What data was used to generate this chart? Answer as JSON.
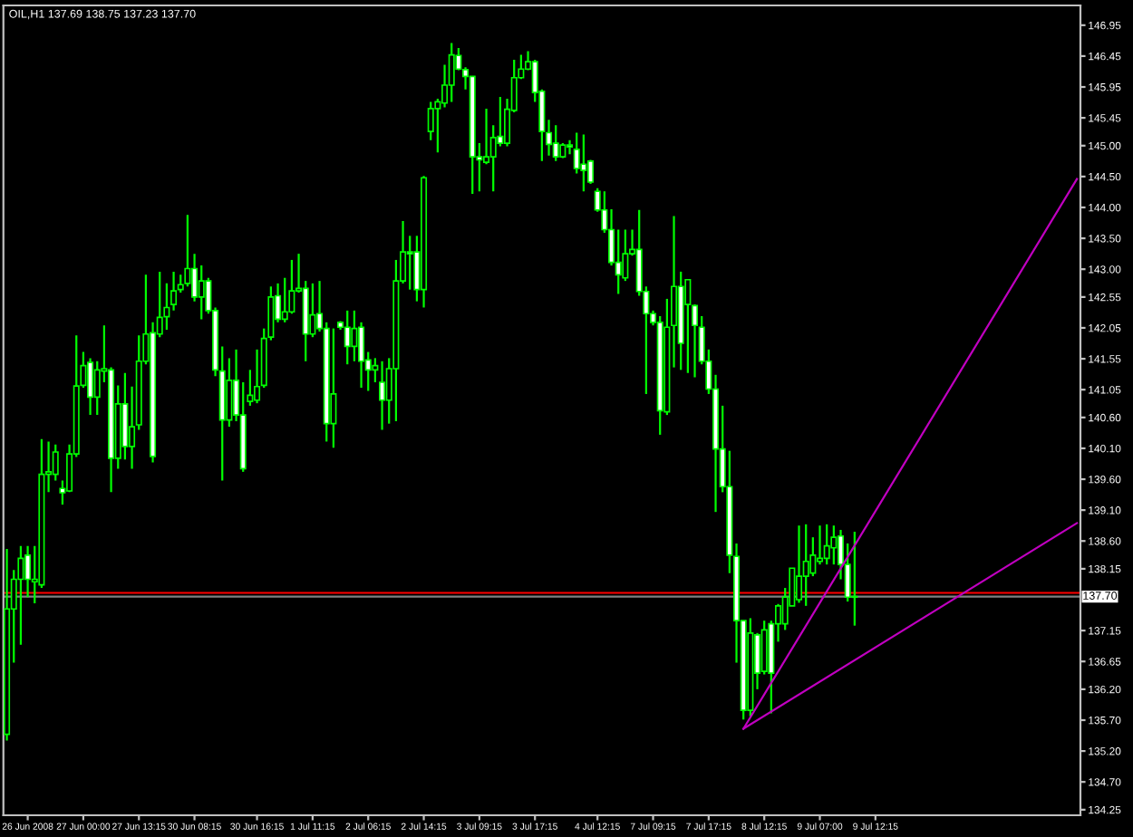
{
  "chart_data": {
    "type": "candlestick",
    "title": "OIL,H1 137.69 138.75 137.23 137.70",
    "color": "#00ff00",
    "categories": [
      null,
      null,
      null,
      "26 Jun 2008",
      null,
      null,
      null,
      null,
      null,
      null,
      null,
      "27 Jun 00:00",
      null,
      null,
      null,
      null,
      null,
      null,
      null,
      "27 Jun 13:15",
      null,
      null,
      null,
      null,
      null,
      null,
      null,
      "30 Jun 08:15",
      null,
      null,
      null,
      null,
      null,
      null,
      null,
      null,
      "30 Jun 16:15",
      null,
      null,
      null,
      null,
      null,
      null,
      null,
      "1 Jul 11:15",
      null,
      null,
      null,
      null,
      null,
      null,
      null,
      "2 Jul 06:15",
      null,
      null,
      null,
      null,
      null,
      null,
      null,
      "2 Jul 14:15",
      null,
      null,
      null,
      null,
      null,
      null,
      null,
      "3 Jul 09:15",
      null,
      null,
      null,
      null,
      null,
      null,
      null,
      "3 Jul 17:15",
      null,
      null,
      null,
      null,
      null,
      null,
      null,
      null,
      "4 Jul 12:15",
      null,
      null,
      null,
      null,
      null,
      null,
      null,
      "7 Jul 09:15",
      null,
      null,
      null,
      null,
      null,
      null,
      null,
      "7 Jul 17:15",
      null,
      null,
      null,
      null,
      null,
      null,
      null,
      "8 Jul 12:15",
      null,
      null,
      null,
      null,
      null,
      null,
      null,
      "9 Jul 07:00",
      null,
      null,
      null,
      null,
      null,
      null,
      null,
      "9 Jul 12:15",
      null,
      null,
      null,
      null,
      null,
      null,
      null,
      null,
      null,
      null,
      null,
      null,
      null,
      null,
      null,
      null,
      null,
      null,
      null,
      null,
      null,
      null,
      null,
      null,
      null,
      null,
      null,
      null,
      null
    ],
    "ohlc": [
      [
        135.47,
        138.47,
        135.37,
        137.5
      ],
      [
        137.5,
        138.13,
        136.63,
        137.98
      ],
      [
        137.98,
        138.52,
        136.92,
        138.32
      ],
      [
        138.37,
        138.52,
        137.69,
        137.98
      ],
      [
        137.94,
        138.52,
        137.59,
        137.98
      ],
      [
        137.89,
        140.25,
        137.84,
        139.68
      ],
      [
        139.68,
        140.21,
        139.39,
        139.72
      ],
      [
        139.68,
        140.16,
        139.58,
        140.04
      ],
      [
        139.45,
        139.58,
        139.19,
        139.38
      ],
      [
        139.41,
        140.16,
        139.39,
        140.01
      ],
      [
        140.01,
        141.93,
        139.96,
        141.11
      ],
      [
        141.12,
        141.66,
        141.08,
        141.44
      ],
      [
        141.49,
        141.56,
        140.64,
        140.93
      ],
      [
        140.93,
        141.51,
        140.64,
        141.37
      ],
      [
        141.35,
        142.09,
        141.17,
        141.39
      ],
      [
        141.37,
        141.41,
        139.39,
        139.94
      ],
      [
        139.94,
        141.12,
        139.77,
        140.82
      ],
      [
        140.82,
        141.32,
        139.92,
        140.13
      ],
      [
        140.13,
        141.1,
        139.77,
        140.45
      ],
      [
        140.48,
        141.93,
        140.4,
        141.51
      ],
      [
        141.51,
        142.91,
        141.46,
        141.95
      ],
      [
        141.97,
        142.14,
        139.87,
        139.97
      ],
      [
        141.95,
        142.96,
        141.9,
        142.22
      ],
      [
        142.23,
        142.77,
        142.02,
        142.38
      ],
      [
        142.43,
        142.96,
        142.33,
        142.65
      ],
      [
        142.67,
        142.91,
        142.62,
        142.75
      ],
      [
        142.77,
        143.88,
        142.72,
        143.01
      ],
      [
        143.01,
        143.25,
        142.48,
        142.55
      ],
      [
        142.55,
        143.06,
        142.19,
        142.81
      ],
      [
        142.81,
        142.86,
        142.28,
        142.33
      ],
      [
        142.33,
        142.38,
        141.27,
        141.37
      ],
      [
        141.35,
        141.75,
        139.58,
        140.56
      ],
      [
        140.56,
        141.56,
        140.45,
        141.2
      ],
      [
        141.2,
        141.7,
        140.54,
        140.64
      ],
      [
        140.64,
        141.17,
        139.72,
        139.77
      ],
      [
        140.86,
        141.37,
        140.79,
        140.96
      ],
      [
        140.88,
        141.7,
        140.83,
        141.1
      ],
      [
        141.12,
        142.04,
        141.08,
        141.88
      ],
      [
        141.9,
        142.72,
        141.85,
        142.55
      ],
      [
        142.57,
        142.77,
        142.14,
        142.19
      ],
      [
        142.19,
        142.86,
        142.14,
        142.31
      ],
      [
        142.31,
        143.15,
        142.28,
        142.65
      ],
      [
        142.65,
        143.25,
        142.62,
        142.69
      ],
      [
        142.69,
        142.81,
        141.51,
        141.95
      ],
      [
        141.95,
        142.77,
        141.9,
        142.26
      ],
      [
        142.28,
        142.81,
        141.99,
        142.04
      ],
      [
        142.04,
        142.14,
        140.21,
        140.5
      ],
      [
        140.5,
        142.04,
        140.11,
        140.98
      ],
      [
        142.14,
        142.16,
        142.02,
        142.06
      ],
      [
        142.06,
        142.33,
        141.46,
        141.75
      ],
      [
        141.75,
        142.33,
        141.51,
        142.04
      ],
      [
        142.06,
        142.14,
        141.08,
        141.51
      ],
      [
        141.53,
        141.66,
        141.03,
        141.37
      ],
      [
        141.37,
        141.56,
        141.17,
        141.44
      ],
      [
        141.17,
        141.51,
        140.4,
        140.88
      ],
      [
        140.88,
        141.56,
        140.5,
        141.39
      ],
      [
        141.39,
        143.15,
        140.54,
        142.81
      ],
      [
        142.81,
        143.78,
        142.77,
        143.28
      ],
      [
        143.28,
        143.54,
        142.67,
        143.25
      ],
      [
        143.28,
        143.54,
        142.48,
        142.67
      ],
      [
        142.67,
        144.51,
        142.38,
        144.48
      ],
      [
        145.23,
        145.71,
        145.09,
        145.6
      ],
      [
        145.6,
        145.76,
        144.89,
        145.71
      ],
      [
        145.69,
        146.31,
        145.62,
        145.98
      ],
      [
        145.98,
        146.66,
        145.71,
        146.47
      ],
      [
        146.46,
        146.58,
        146.22,
        146.24
      ],
      [
        146.23,
        146.27,
        145.91,
        146.12
      ],
      [
        146.12,
        146.12,
        144.22,
        144.82
      ],
      [
        144.82,
        145.04,
        144.26,
        144.77
      ],
      [
        144.73,
        145.6,
        144.7,
        144.82
      ],
      [
        144.82,
        145.33,
        144.26,
        145.13
      ],
      [
        145.15,
        145.79,
        144.99,
        145.04
      ],
      [
        145.04,
        145.76,
        144.99,
        145.59
      ],
      [
        145.57,
        146.39,
        145.54,
        146.1
      ],
      [
        146.1,
        146.47,
        146.08,
        146.24
      ],
      [
        146.24,
        146.53,
        146.22,
        146.36
      ],
      [
        146.36,
        146.39,
        145.71,
        145.86
      ],
      [
        145.88,
        145.91,
        144.75,
        145.23
      ],
      [
        145.21,
        145.42,
        144.84,
        145.02
      ],
      [
        145.04,
        145.33,
        144.75,
        144.82
      ],
      [
        144.82,
        145.04,
        144.8,
        145.01
      ],
      [
        145.01,
        145.09,
        144.86,
        144.98
      ],
      [
        144.94,
        145.21,
        144.55,
        144.63
      ],
      [
        144.7,
        145.18,
        144.26,
        144.6
      ],
      [
        144.75,
        144.77,
        144.38,
        144.41
      ],
      [
        144.26,
        144.31,
        143.93,
        143.96
      ],
      [
        143.96,
        144.26,
        143.59,
        143.64
      ],
      [
        143.64,
        143.97,
        143.06,
        143.11
      ],
      [
        143.11,
        143.64,
        142.6,
        142.91
      ],
      [
        142.86,
        143.64,
        142.81,
        143.25
      ],
      [
        143.25,
        143.64,
        143.22,
        143.32
      ],
      [
        143.32,
        143.96,
        142.57,
        142.64
      ],
      [
        142.64,
        142.72,
        140.98,
        142.28
      ],
      [
        142.28,
        142.33,
        142.09,
        142.14
      ],
      [
        142.14,
        142.24,
        140.32,
        140.71
      ],
      [
        140.69,
        142.52,
        140.64,
        142.06
      ],
      [
        142.09,
        143.86,
        141.41,
        142.72
      ],
      [
        142.72,
        142.96,
        141.37,
        141.8
      ],
      [
        142.43,
        142.83,
        141.32,
        142.83
      ],
      [
        142.41,
        142.43,
        141.25,
        142.09
      ],
      [
        142.06,
        142.24,
        141.46,
        141.51
      ],
      [
        141.51,
        141.7,
        140.98,
        141.06
      ],
      [
        141.06,
        141.29,
        139.07,
        140.09
      ],
      [
        140.09,
        140.79,
        139.39,
        139.48
      ],
      [
        139.48,
        140.06,
        138.08,
        138.37
      ],
      [
        138.35,
        138.56,
        136.63,
        137.31
      ],
      [
        137.31,
        137.31,
        135.71,
        135.86
      ],
      [
        135.86,
        137.35,
        135.76,
        137.11
      ],
      [
        137.08,
        137.11,
        136.2,
        136.46
      ],
      [
        136.49,
        137.31,
        136.44,
        137.16
      ],
      [
        137.26,
        137.31,
        135.81,
        136.46
      ],
      [
        137.26,
        137.58,
        136.97,
        137.55
      ],
      [
        137.26,
        137.84,
        137.16,
        137.69
      ],
      [
        137.55,
        138.16,
        137.55,
        138.16
      ],
      [
        137.65,
        138.85,
        137.6,
        138.03
      ],
      [
        138.03,
        138.87,
        137.55,
        138.27
      ],
      [
        138.08,
        138.66,
        138.03,
        138.37
      ],
      [
        138.27,
        138.85,
        138.22,
        138.32
      ],
      [
        138.32,
        138.87,
        138.22,
        138.52
      ],
      [
        138.49,
        138.85,
        138.22,
        138.66
      ],
      [
        138.68,
        138.78,
        137.98,
        138.22
      ],
      [
        138.22,
        138.56,
        137.62,
        137.69
      ],
      [
        137.69,
        138.75,
        137.23,
        137.7
      ],
      null,
      null,
      null,
      null,
      null,
      null,
      null,
      null,
      null,
      null,
      null,
      null,
      null,
      null,
      null,
      null,
      null,
      null,
      null,
      null,
      null,
      null,
      null,
      null,
      null,
      null,
      null,
      null,
      null,
      null,
      null,
      null
    ],
    "series": [
      {
        "type": "line",
        "color": "#c000c0",
        "values": [
          null,
          null,
          null,
          null,
          null,
          null,
          null,
          null,
          null,
          null,
          null,
          null,
          null,
          null,
          null,
          null,
          null,
          null,
          null,
          null,
          null,
          null,
          null,
          null,
          null,
          null,
          null,
          null,
          null,
          null,
          null,
          null,
          null,
          null,
          null,
          null,
          null,
          null,
          null,
          null,
          null,
          null,
          null,
          null,
          null,
          null,
          null,
          null,
          null,
          null,
          null,
          null,
          null,
          null,
          null,
          null,
          null,
          null,
          null,
          null,
          null,
          null,
          null,
          null,
          null,
          null,
          null,
          null,
          null,
          null,
          null,
          null,
          null,
          null,
          null,
          null,
          null,
          null,
          null,
          null,
          null,
          null,
          null,
          null,
          null,
          null,
          null,
          null,
          null,
          null,
          null,
          null,
          null,
          null,
          null,
          null,
          null,
          null,
          null,
          null,
          null,
          null,
          null,
          null,
          null,
          null,
          135.56,
          null,
          null,
          null,
          null,
          null,
          null,
          null,
          null,
          null,
          null,
          null,
          null,
          null,
          null,
          null,
          null,
          null,
          null,
          null,
          null,
          null,
          null,
          null,
          null,
          null,
          null,
          null,
          null,
          null,
          null,
          null,
          null,
          null,
          null,
          null,
          null,
          null,
          null,
          null,
          null,
          null,
          null,
          null,
          null,
          null,
          null,
          null,
          144.46
        ]
      },
      {
        "type": "line",
        "color": "#c000c0",
        "values": [
          null,
          null,
          null,
          null,
          null,
          null,
          null,
          null,
          null,
          null,
          null,
          null,
          null,
          null,
          null,
          null,
          null,
          null,
          null,
          null,
          null,
          null,
          null,
          null,
          null,
          null,
          null,
          null,
          null,
          null,
          null,
          null,
          null,
          null,
          null,
          null,
          null,
          null,
          null,
          null,
          null,
          null,
          null,
          null,
          null,
          null,
          null,
          null,
          null,
          null,
          null,
          null,
          null,
          null,
          null,
          null,
          null,
          null,
          null,
          null,
          null,
          null,
          null,
          null,
          null,
          null,
          null,
          null,
          null,
          null,
          null,
          null,
          null,
          null,
          null,
          null,
          null,
          null,
          null,
          null,
          null,
          null,
          null,
          null,
          null,
          null,
          null,
          null,
          null,
          null,
          null,
          null,
          null,
          null,
          null,
          null,
          null,
          null,
          null,
          null,
          null,
          null,
          null,
          null,
          null,
          null,
          135.56,
          null,
          null,
          null,
          null,
          null,
          null,
          null,
          null,
          null,
          null,
          null,
          null,
          null,
          null,
          null,
          null,
          null,
          null,
          null,
          null,
          null,
          null,
          null,
          null,
          null,
          null,
          null,
          null,
          null,
          null,
          null,
          null,
          null,
          null,
          null,
          null,
          null,
          null,
          null,
          null,
          null,
          null,
          null,
          null,
          null,
          null,
          null,
          138.89
        ]
      }
    ],
    "ref_lines": [
      {
        "axis": "y",
        "value": 137.76,
        "color": "#ff0000"
      },
      {
        "axis": "y",
        "value": 137.7,
        "label": "137.70",
        "color": "#808080"
      }
    ],
    "ylim": [
      134.16,
      147.27
    ],
    "yticks": [
      146.95,
      146.45,
      145.95,
      145.45,
      {
        "value": 145.0,
        "label": "145.00"
      },
      {
        "value": 144.5,
        "label": "144.50"
      },
      {
        "value": 144.0,
        "label": "144.00"
      },
      {
        "value": 143.5,
        "label": "143.50"
      },
      {
        "value": 143.0,
        "label": "143.00"
      },
      142.55,
      142.05,
      141.55,
      141.05,
      {
        "value": 140.6,
        "label": "140.60"
      },
      {
        "value": 140.1,
        "label": "140.10"
      },
      {
        "value": 139.6,
        "label": "139.60"
      },
      {
        "value": 139.1,
        "label": "139.10"
      },
      {
        "value": 138.6,
        "label": "138.60"
      },
      138.15,
      137.15,
      136.65,
      {
        "value": 136.2,
        "label": "136.20"
      },
      {
        "value": 135.7,
        "label": "135.70"
      },
      {
        "value": 135.2,
        "label": "135.20"
      },
      {
        "value": 134.7,
        "label": "134.70"
      },
      134.25
    ]
  }
}
